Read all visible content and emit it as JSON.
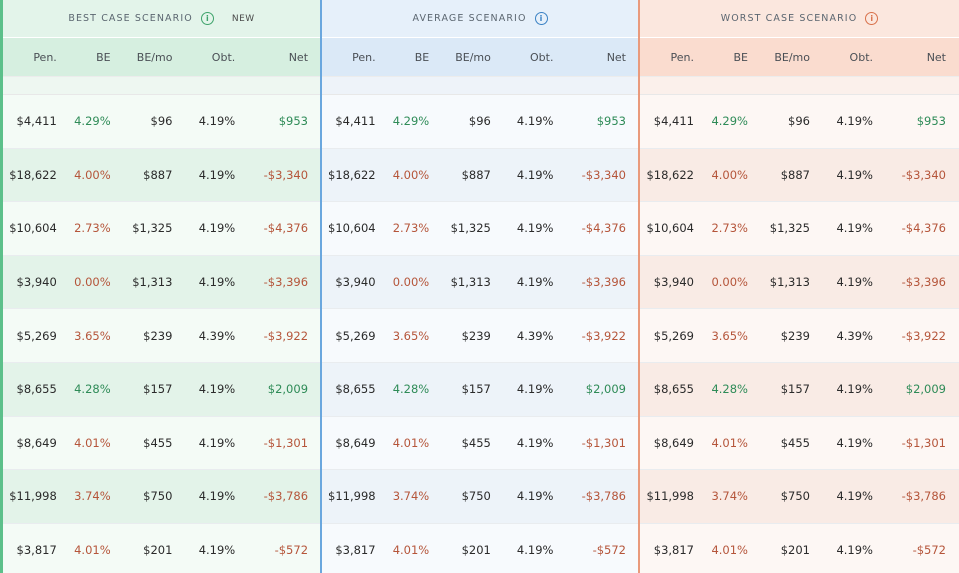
{
  "scenarios": [
    {
      "title": "BEST CASE SCENARIO",
      "badge": "NEW"
    },
    {
      "title": "AVERAGE SCENARIO",
      "badge": ""
    },
    {
      "title": "WORST CASE SCENARIO",
      "badge": ""
    }
  ],
  "columns": [
    "Pen.",
    "BE",
    "BE/mo",
    "Obt.",
    "Net"
  ],
  "info_icon_glyph": "i",
  "colors": {
    "best_accent": "#5cc08a",
    "average_accent": "#6aa7de",
    "worst_accent": "#e99a7c",
    "positive": "#2e8b57",
    "negative": "#b5553a"
  },
  "rows": [
    {
      "pen": "$4,411",
      "be": "4.29%",
      "be_tone": "pos",
      "bemo": "$96",
      "obt": "4.19%",
      "net": "$953",
      "net_tone": "pos"
    },
    {
      "pen": "$18,622",
      "be": "4.00%",
      "be_tone": "neg",
      "bemo": "$887",
      "obt": "4.19%",
      "net": "-$3,340",
      "net_tone": "neg"
    },
    {
      "pen": "$10,604",
      "be": "2.73%",
      "be_tone": "neg",
      "bemo": "$1,325",
      "obt": "4.19%",
      "net": "-$4,376",
      "net_tone": "neg"
    },
    {
      "pen": "$3,940",
      "be": "0.00%",
      "be_tone": "neg",
      "bemo": "$1,313",
      "obt": "4.19%",
      "net": "-$3,396",
      "net_tone": "neg"
    },
    {
      "pen": "$5,269",
      "be": "3.65%",
      "be_tone": "neg",
      "bemo": "$239",
      "obt": "4.39%",
      "net": "-$3,922",
      "net_tone": "neg"
    },
    {
      "pen": "$8,655",
      "be": "4.28%",
      "be_tone": "pos",
      "bemo": "$157",
      "obt": "4.19%",
      "net": "$2,009",
      "net_tone": "pos"
    },
    {
      "pen": "$8,649",
      "be": "4.01%",
      "be_tone": "neg",
      "bemo": "$455",
      "obt": "4.19%",
      "net": "-$1,301",
      "net_tone": "neg"
    },
    {
      "pen": "$11,998",
      "be": "3.74%",
      "be_tone": "neg",
      "bemo": "$750",
      "obt": "4.19%",
      "net": "-$3,786",
      "net_tone": "neg"
    },
    {
      "pen": "$3,817",
      "be": "4.01%",
      "be_tone": "neg",
      "bemo": "$201",
      "obt": "4.19%",
      "net": "-$572",
      "net_tone": "neg"
    }
  ]
}
